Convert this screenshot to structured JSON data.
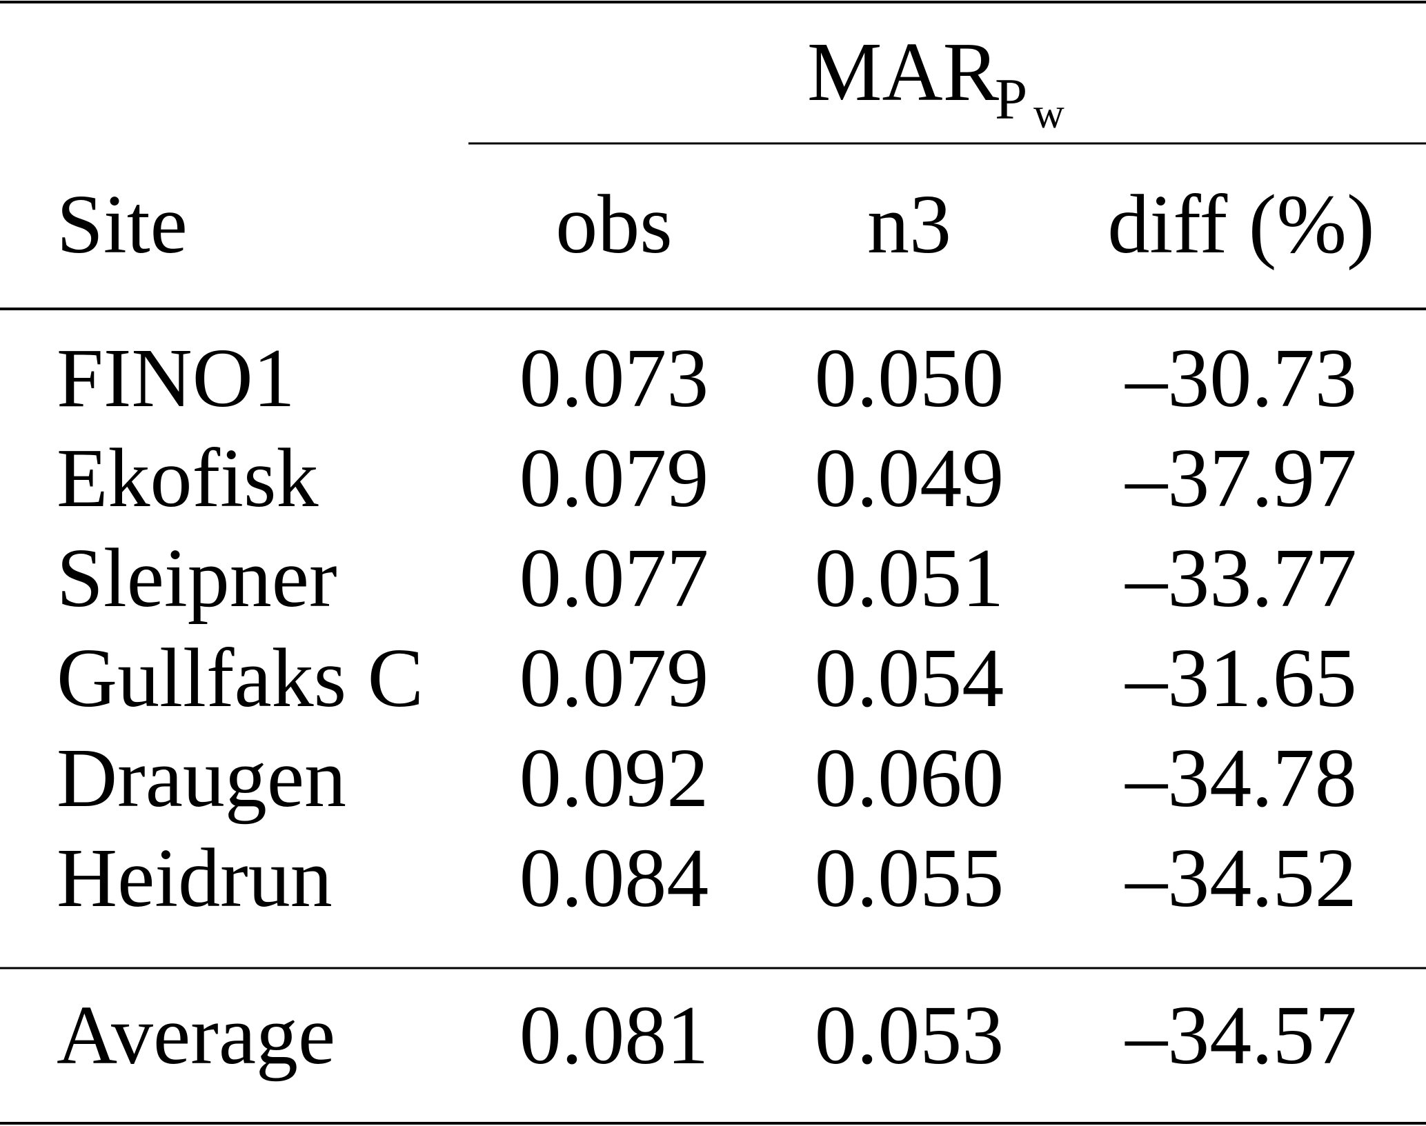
{
  "table": {
    "group_header": {
      "main": "MAR",
      "sub": "P",
      "subsub": "w"
    },
    "columns": [
      "Site",
      "obs",
      "n3",
      "diff (%)"
    ],
    "rows": [
      [
        "FINO1",
        "0.073",
        "0.050",
        "–30.73"
      ],
      [
        "Ekofisk",
        "0.079",
        "0.049",
        "–37.97"
      ],
      [
        "Sleipner",
        "0.077",
        "0.051",
        "–33.77"
      ],
      [
        "Gullfaks C",
        "0.079",
        "0.054",
        "–31.65"
      ],
      [
        "Draugen",
        "0.092",
        "0.060",
        "–34.78"
      ],
      [
        "Heidrun",
        "0.084",
        "0.055",
        "–34.52"
      ]
    ],
    "summary": [
      "Average",
      "0.081",
      "0.053",
      "–34.57"
    ]
  }
}
